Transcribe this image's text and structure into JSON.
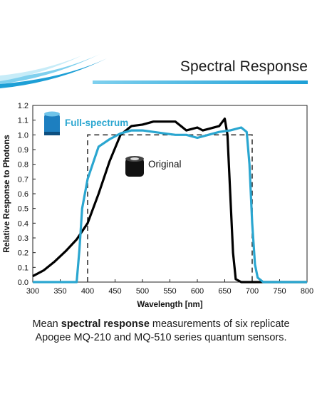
{
  "header": {
    "title": "Spectral Response"
  },
  "colors": {
    "accent": "#1d9fd6",
    "full_spectrum_series": "#2aa6d0",
    "original_series": "#000000",
    "reference": "#333333"
  },
  "icons": {
    "full_spectrum": "full-spectrum-sensor-icon",
    "original": "original-sensor-icon"
  },
  "caption": {
    "part1": "Mean ",
    "bold": "spectral response",
    "part2": " measurements of six replicate",
    "line2": "Apogee MQ-210 and MQ-510 series quantum sensors."
  },
  "chart_data": {
    "type": "line",
    "xlabel": "Wavelength [nm]",
    "ylabel": "Relative Response to Photons",
    "xlim": [
      300,
      800
    ],
    "ylim": [
      0,
      1.2
    ],
    "xticks": [
      300,
      350,
      400,
      450,
      500,
      550,
      600,
      650,
      700,
      750,
      800
    ],
    "yticks": [
      0.0,
      0.1,
      0.2,
      0.3,
      0.4,
      0.5,
      0.6,
      0.7,
      0.8,
      0.9,
      1.0,
      1.1,
      1.2
    ],
    "ytick_labels": [
      "0.0",
      "0.1",
      "0.2",
      "0.3",
      "0.4",
      "0.5",
      "0.6",
      "0.7",
      "0.8",
      "0.9",
      "1.0",
      "1.1",
      "1.2"
    ],
    "grid": false,
    "series": [
      {
        "name": "Original",
        "style": "solid",
        "x": [
          300,
          320,
          340,
          360,
          380,
          400,
          420,
          440,
          460,
          480,
          500,
          520,
          540,
          560,
          580,
          590,
          600,
          610,
          620,
          640,
          650,
          655,
          660,
          665,
          670,
          680,
          700,
          720,
          800
        ],
        "y": [
          0.04,
          0.08,
          0.14,
          0.21,
          0.29,
          0.4,
          0.6,
          0.82,
          1.0,
          1.06,
          1.07,
          1.09,
          1.09,
          1.09,
          1.03,
          1.04,
          1.05,
          1.03,
          1.04,
          1.06,
          1.11,
          1.0,
          0.6,
          0.2,
          0.02,
          0.0,
          0.0,
          0.0,
          0.0
        ]
      },
      {
        "name": "Full-spectrum",
        "style": "solid",
        "x": [
          300,
          380,
          385,
          390,
          400,
          420,
          440,
          460,
          480,
          500,
          520,
          540,
          560,
          580,
          600,
          620,
          640,
          660,
          680,
          690,
          695,
          700,
          705,
          710,
          720,
          800
        ],
        "y": [
          0.0,
          0.0,
          0.22,
          0.5,
          0.7,
          0.92,
          0.97,
          1.01,
          1.03,
          1.03,
          1.02,
          1.01,
          1.0,
          1.0,
          0.98,
          1.0,
          1.02,
          1.03,
          1.05,
          1.02,
          0.8,
          0.4,
          0.12,
          0.03,
          0.0,
          0.0
        ]
      },
      {
        "name": "",
        "style": "dashed",
        "x": [
          400,
          400,
          700,
          700
        ],
        "y": [
          0.0,
          1.0,
          1.0,
          0.0
        ]
      }
    ],
    "legend": [
      {
        "label": "Full-spectrum",
        "series": "Full-spectrum",
        "placement": "top-left"
      },
      {
        "label": "Original",
        "series": "Original",
        "placement": "center"
      }
    ]
  }
}
